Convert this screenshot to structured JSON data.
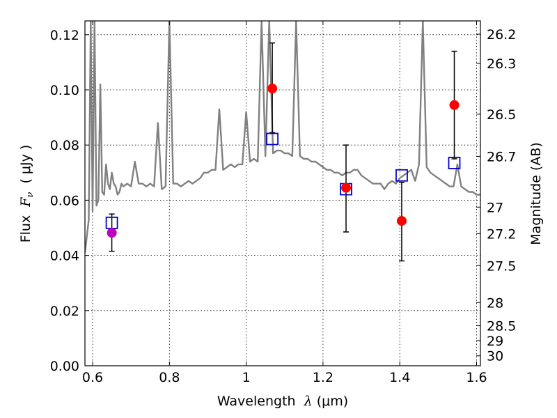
{
  "chart_data": {
    "type": "scatter",
    "xlabel": {
      "prefix": "Wavelength  ",
      "symbol": "λ",
      "units": " (μm)"
    },
    "ylabel": {
      "prefix": "Flux  ",
      "symbol": "F",
      "subscript": "ν",
      "units": "  ( μJy )"
    },
    "y2label": "Magnitude (AB)",
    "xlim": [
      0.58,
      1.61
    ],
    "ylim": [
      0.0,
      0.125
    ],
    "grid": true,
    "x_ticks": [
      0.6,
      0.8,
      1.0,
      1.2,
      1.4,
      1.6
    ],
    "x_tick_labels": [
      "0.6",
      "0.8",
      "1",
      "1.2",
      "1.4",
      "1.6"
    ],
    "y_ticks": [
      0.0,
      0.02,
      0.04,
      0.06,
      0.08,
      0.1,
      0.12
    ],
    "y_tick_labels": [
      "0.00",
      "0.02",
      "0.04",
      "0.06",
      "0.08",
      "0.10",
      "0.12"
    ],
    "y2_ticks": [
      {
        "label": "26.2",
        "flux": 0.1202
      },
      {
        "label": "26.3",
        "flux": 0.1096
      },
      {
        "label": "26.5",
        "flux": 0.0912
      },
      {
        "label": "26.7",
        "flux": 0.0759
      },
      {
        "label": "27",
        "flux": 0.0575
      },
      {
        "label": "27.2",
        "flux": 0.0479
      },
      {
        "label": "27.5",
        "flux": 0.0363
      },
      {
        "label": "28",
        "flux": 0.0229
      },
      {
        "label": "28.5",
        "flux": 0.0145
      },
      {
        "label": "29",
        "flux": 0.0091
      },
      {
        "label": "30",
        "flux": 0.0036
      }
    ],
    "series": [
      {
        "kind": "spectrum",
        "color": "#808080",
        "x": [
          0.58,
          0.59,
          0.595,
          0.6,
          0.605,
          0.61,
          0.615,
          0.62,
          0.625,
          0.63,
          0.635,
          0.64,
          0.645,
          0.65,
          0.655,
          0.66,
          0.665,
          0.67,
          0.675,
          0.68,
          0.69,
          0.7,
          0.71,
          0.72,
          0.73,
          0.74,
          0.75,
          0.76,
          0.77,
          0.78,
          0.79,
          0.8,
          0.81,
          0.82,
          0.83,
          0.84,
          0.85,
          0.86,
          0.87,
          0.88,
          0.89,
          0.9,
          0.91,
          0.92,
          0.93,
          0.94,
          0.95,
          0.96,
          0.97,
          0.98,
          0.99,
          1.0,
          1.01,
          1.02,
          1.03,
          1.04,
          1.05,
          1.06,
          1.07,
          1.08,
          1.09,
          1.1,
          1.11,
          1.12,
          1.13,
          1.14,
          1.15,
          1.16,
          1.17,
          1.18,
          1.19,
          1.2,
          1.21,
          1.22,
          1.23,
          1.24,
          1.25,
          1.26,
          1.27,
          1.28,
          1.29,
          1.3,
          1.31,
          1.32,
          1.33,
          1.34,
          1.35,
          1.36,
          1.37,
          1.38,
          1.39,
          1.4,
          1.41,
          1.42,
          1.43,
          1.44,
          1.45,
          1.46,
          1.47,
          1.48,
          1.49,
          1.5,
          1.51,
          1.52,
          1.53,
          1.54,
          1.55,
          1.56,
          1.57,
          1.58,
          1.59,
          1.6,
          1.61
        ],
        "y": [
          0.041,
          0.053,
          0.125,
          0.056,
          0.125,
          0.058,
          0.06,
          0.102,
          0.063,
          0.062,
          0.073,
          0.066,
          0.064,
          0.07,
          0.066,
          0.065,
          0.062,
          0.063,
          0.066,
          0.065,
          0.066,
          0.065,
          0.074,
          0.066,
          0.066,
          0.065,
          0.066,
          0.065,
          0.088,
          0.064,
          0.065,
          0.125,
          0.066,
          0.066,
          0.065,
          0.066,
          0.067,
          0.066,
          0.067,
          0.068,
          0.07,
          0.07,
          0.071,
          0.071,
          0.093,
          0.071,
          0.072,
          0.073,
          0.072,
          0.073,
          0.073,
          0.092,
          0.074,
          0.075,
          0.074,
          0.125,
          0.076,
          0.125,
          0.077,
          0.078,
          0.078,
          0.077,
          0.077,
          0.076,
          0.125,
          0.076,
          0.075,
          0.075,
          0.074,
          0.074,
          0.073,
          0.072,
          0.071,
          0.071,
          0.07,
          0.07,
          0.069,
          0.07,
          0.07,
          0.071,
          0.071,
          0.069,
          0.068,
          0.067,
          0.066,
          0.066,
          0.066,
          0.064,
          0.066,
          0.067,
          0.066,
          0.068,
          0.069,
          0.07,
          0.071,
          0.067,
          0.073,
          0.125,
          0.072,
          0.07,
          0.069,
          0.068,
          0.067,
          0.066,
          0.065,
          0.065,
          0.073,
          0.065,
          0.064,
          0.063,
          0.063,
          0.062,
          0.062
        ]
      },
      {
        "kind": "observed",
        "color": "#ff0000",
        "points": [
          {
            "x": 1.068,
            "y": 0.1005,
            "err_lo": 0.016,
            "err_hi": 0.0165
          },
          {
            "x": 1.26,
            "y": 0.0645,
            "err_lo": 0.016,
            "err_hi": 0.0155
          },
          {
            "x": 1.405,
            "y": 0.0525,
            "err_lo": 0.0145,
            "err_hi": 0.014
          },
          {
            "x": 1.542,
            "y": 0.0945,
            "err_lo": 0.0195,
            "err_hi": 0.0195
          }
        ]
      },
      {
        "kind": "observed",
        "color": "#bf00bf",
        "points": [
          {
            "x": 0.65,
            "y": 0.0482,
            "err_lo": 0.0067,
            "err_hi": 0.0068
          }
        ]
      },
      {
        "kind": "model",
        "color": "#0000cc",
        "points": [
          {
            "x": 0.65,
            "y": 0.0518
          },
          {
            "x": 1.068,
            "y": 0.0822
          },
          {
            "x": 1.26,
            "y": 0.064
          },
          {
            "x": 1.405,
            "y": 0.069
          },
          {
            "x": 1.542,
            "y": 0.0735
          }
        ]
      }
    ]
  }
}
